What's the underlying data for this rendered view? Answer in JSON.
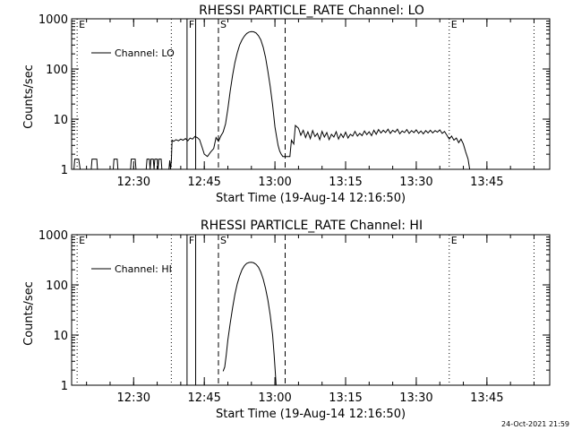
{
  "footer": {
    "timestamp": "24-Oct-2021 21:59"
  },
  "chart_data": [
    {
      "type": "line",
      "title": "RHESSI PARTICLE_RATE Channel: LO",
      "xlabel": "Start Time (19-Aug-14 12:16:50)",
      "ylabel": "Counts/sec",
      "yscale": "log",
      "ylim": [
        1,
        1000
      ],
      "xlim": [
        "12:16:50",
        "13:58:20"
      ],
      "ytick_labels": [
        "1000",
        "100",
        "10",
        "1"
      ],
      "xtick_labels": [
        "12:30",
        "12:45",
        "13:00",
        "13:15",
        "13:30",
        "13:45"
      ],
      "grid": false,
      "legend": {
        "position": "top-left",
        "label": "Channel: LO"
      },
      "markers": [
        {
          "time": "12:18:00",
          "label": "E",
          "style": "dotted"
        },
        {
          "time": "12:38:00",
          "label": "",
          "style": "dotted"
        },
        {
          "time": "12:41:20",
          "label": "F",
          "style": "solid"
        },
        {
          "time": "12:43:10",
          "label": "",
          "style": "solid"
        },
        {
          "time": "12:48:00",
          "label": "S",
          "style": "dashed"
        },
        {
          "time": "13:02:10",
          "label": "",
          "style": "dashed"
        },
        {
          "time": "13:37:00",
          "label": "E",
          "style": "dotted"
        },
        {
          "time": "13:55:00",
          "label": "",
          "style": "dotted"
        }
      ],
      "series": [
        {
          "name": "Channel: LO",
          "points": [
            [
              "12:16:50",
              1
            ],
            [
              "12:17:20",
              1
            ],
            [
              "12:17:30",
              1.6
            ],
            [
              "12:18:20",
              1.6
            ],
            [
              "12:18:40",
              1
            ],
            [
              "12:21:00",
              1
            ],
            [
              "12:21:10",
              1.6
            ],
            [
              "12:22:10",
              1.6
            ],
            [
              "12:22:20",
              1
            ],
            [
              "12:25:40",
              1
            ],
            [
              "12:25:50",
              1.6
            ],
            [
              "12:26:30",
              1.6
            ],
            [
              "12:26:40",
              1
            ],
            [
              "12:29:20",
              1
            ],
            [
              "12:29:30",
              1.6
            ],
            [
              "12:30:20",
              1.6
            ],
            [
              "12:30:30",
              1
            ],
            [
              "12:32:40",
              1
            ],
            [
              "12:32:50",
              1.6
            ],
            [
              "12:33:20",
              1.6
            ],
            [
              "12:33:30",
              1
            ],
            [
              "12:33:40",
              1.6
            ],
            [
              "12:34:10",
              1.6
            ],
            [
              "12:34:20",
              1
            ],
            [
              "12:34:30",
              1.6
            ],
            [
              "12:35:00",
              1.6
            ],
            [
              "12:35:10",
              1
            ],
            [
              "12:35:20",
              1.6
            ],
            [
              "12:35:50",
              1.6
            ],
            [
              "12:36:00",
              1
            ],
            [
              "12:37:30",
              1
            ],
            [
              "12:37:40",
              1.5
            ],
            [
              "12:37:50",
              1
            ],
            [
              "12:38:00",
              1.5
            ],
            [
              "12:38:10",
              3.8
            ],
            [
              "12:38:30",
              3.6
            ],
            [
              "12:39:00",
              3.9
            ],
            [
              "12:39:30",
              3.7
            ],
            [
              "12:40:00",
              4.0
            ],
            [
              "12:40:30",
              3.8
            ],
            [
              "12:41:00",
              4.1
            ],
            [
              "12:41:30",
              3.7
            ],
            [
              "12:42:00",
              4.2
            ],
            [
              "12:42:30",
              4.0
            ],
            [
              "12:43:00",
              4.5
            ],
            [
              "12:43:30",
              4.3
            ],
            [
              "12:44:00",
              3.9
            ],
            [
              "12:44:30",
              2.8
            ],
            [
              "12:45:00",
              2.0
            ],
            [
              "12:45:40",
              1.8
            ],
            [
              "12:46:20",
              2.2
            ],
            [
              "12:47:00",
              2.6
            ],
            [
              "12:47:30",
              4.3
            ],
            [
              "12:48:00",
              3.6
            ],
            [
              "12:48:30",
              4.6
            ],
            [
              "12:49:00",
              5.5
            ],
            [
              "12:49:30",
              8
            ],
            [
              "12:50:00",
              16
            ],
            [
              "12:50:30",
              36
            ],
            [
              "12:51:00",
              75
            ],
            [
              "12:51:30",
              135
            ],
            [
              "12:52:00",
              210
            ],
            [
              "12:52:30",
              300
            ],
            [
              "12:53:00",
              380
            ],
            [
              "12:53:30",
              450
            ],
            [
              "12:54:00",
              510
            ],
            [
              "12:54:30",
              545
            ],
            [
              "12:55:00",
              555
            ],
            [
              "12:55:30",
              550
            ],
            [
              "12:56:00",
              520
            ],
            [
              "12:56:30",
              460
            ],
            [
              "12:57:00",
              380
            ],
            [
              "12:57:30",
              270
            ],
            [
              "12:58:00",
              170
            ],
            [
              "12:58:30",
              90
            ],
            [
              "12:59:00",
              45
            ],
            [
              "12:59:30",
              19
            ],
            [
              "13:00:00",
              7
            ],
            [
              "13:00:20",
              4.5
            ],
            [
              "13:00:40",
              3
            ],
            [
              "13:01:00",
              2.3
            ],
            [
              "13:01:20",
              2.0
            ],
            [
              "13:01:40",
              1.8
            ],
            [
              "13:02:00",
              1.8
            ],
            [
              "13:02:20",
              1.8
            ],
            [
              "13:02:40",
              1.8
            ],
            [
              "13:03:00",
              1.8
            ],
            [
              "13:03:10",
              1.8
            ],
            [
              "13:03:30",
              3.8
            ],
            [
              "13:04:00",
              3.2
            ],
            [
              "13:04:20",
              7.5
            ],
            [
              "13:05:00",
              6.6
            ],
            [
              "13:05:30",
              4.8
            ],
            [
              "13:06:00",
              6.0
            ],
            [
              "13:06:30",
              4.3
            ],
            [
              "13:07:00",
              5.6
            ],
            [
              "13:07:30",
              4.1
            ],
            [
              "13:08:00",
              5.9
            ],
            [
              "13:08:30",
              4.5
            ],
            [
              "13:09:00",
              5.2
            ],
            [
              "13:09:30",
              3.9
            ],
            [
              "13:10:00",
              5.7
            ],
            [
              "13:10:30",
              4.4
            ],
            [
              "13:11:00",
              5.4
            ],
            [
              "13:11:30",
              3.9
            ],
            [
              "13:12:00",
              5.0
            ],
            [
              "13:12:30",
              4.4
            ],
            [
              "13:13:00",
              5.6
            ],
            [
              "13:13:30",
              4.0
            ],
            [
              "13:14:00",
              5.1
            ],
            [
              "13:14:30",
              4.3
            ],
            [
              "13:15:00",
              5.5
            ],
            [
              "13:15:30",
              4.2
            ],
            [
              "13:16:00",
              5.0
            ],
            [
              "13:16:30",
              4.6
            ],
            [
              "13:17:00",
              5.7
            ],
            [
              "13:17:30",
              4.6
            ],
            [
              "13:18:00",
              5.2
            ],
            [
              "13:18:30",
              4.7
            ],
            [
              "13:19:00",
              5.8
            ],
            [
              "13:19:30",
              4.9
            ],
            [
              "13:20:00",
              5.6
            ],
            [
              "13:20:30",
              4.7
            ],
            [
              "13:21:00",
              6.0
            ],
            [
              "13:21:30",
              5.0
            ],
            [
              "13:22:00",
              6.2
            ],
            [
              "13:22:30",
              5.3
            ],
            [
              "13:23:00",
              6.0
            ],
            [
              "13:23:30",
              5.4
            ],
            [
              "13:24:00",
              6.3
            ],
            [
              "13:24:30",
              5.2
            ],
            [
              "13:25:00",
              6.0
            ],
            [
              "13:25:30",
              5.5
            ],
            [
              "13:26:00",
              6.3
            ],
            [
              "13:26:30",
              5.1
            ],
            [
              "13:27:00",
              5.8
            ],
            [
              "13:27:30",
              5.4
            ],
            [
              "13:28:00",
              6.2
            ],
            [
              "13:28:30",
              5.2
            ],
            [
              "13:29:00",
              5.9
            ],
            [
              "13:29:30",
              5.4
            ],
            [
              "13:30:00",
              6.1
            ],
            [
              "13:30:30",
              5.2
            ],
            [
              "13:31:00",
              5.8
            ],
            [
              "13:31:30",
              5.1
            ],
            [
              "13:32:00",
              5.9
            ],
            [
              "13:32:30",
              5.3
            ],
            [
              "13:33:00",
              6.0
            ],
            [
              "13:33:30",
              5.3
            ],
            [
              "13:34:00",
              5.9
            ],
            [
              "13:34:30",
              5.5
            ],
            [
              "13:35:00",
              6.1
            ],
            [
              "13:35:30",
              5.2
            ],
            [
              "13:36:00",
              5.7
            ],
            [
              "13:36:30",
              4.8
            ],
            [
              "13:37:00",
              4.0
            ],
            [
              "13:37:30",
              4.6
            ],
            [
              "13:38:00",
              3.8
            ],
            [
              "13:38:30",
              4.2
            ],
            [
              "13:39:00",
              3.4
            ],
            [
              "13:39:30",
              4.0
            ],
            [
              "13:40:00",
              3.2
            ],
            [
              "13:40:30",
              2.2
            ],
            [
              "13:41:00",
              1.6
            ],
            [
              "13:41:20",
              1
            ],
            [
              "13:58:20",
              1
            ]
          ]
        }
      ]
    },
    {
      "type": "line",
      "title": "RHESSI PARTICLE_RATE Channel: HI",
      "xlabel": "Start Time (19-Aug-14 12:16:50)",
      "ylabel": "Counts/sec",
      "yscale": "log",
      "ylim": [
        1,
        1000
      ],
      "xlim": [
        "12:16:50",
        "13:58:20"
      ],
      "ytick_labels": [
        "1000",
        "100",
        "10",
        "1"
      ],
      "xtick_labels": [
        "12:30",
        "12:45",
        "13:00",
        "13:15",
        "13:30",
        "13:45"
      ],
      "grid": false,
      "legend": {
        "position": "top-left",
        "label": "Channel: HI"
      },
      "markers": [
        {
          "time": "12:18:00",
          "label": "E",
          "style": "dotted"
        },
        {
          "time": "12:38:00",
          "label": "",
          "style": "dotted"
        },
        {
          "time": "12:41:20",
          "label": "F",
          "style": "solid"
        },
        {
          "time": "12:43:10",
          "label": "",
          "style": "solid"
        },
        {
          "time": "12:48:00",
          "label": "S",
          "style": "dashed"
        },
        {
          "time": "13:02:10",
          "label": "",
          "style": "dashed"
        },
        {
          "time": "13:37:00",
          "label": "E",
          "style": "dotted"
        },
        {
          "time": "13:55:00",
          "label": "",
          "style": "dotted"
        }
      ],
      "series": [
        {
          "name": "Channel: HI",
          "points": [
            [
              "12:49:00",
              1.9
            ],
            [
              "12:49:20",
              2.3
            ],
            [
              "12:49:40",
              4
            ],
            [
              "12:50:00",
              8
            ],
            [
              "12:50:30",
              17
            ],
            [
              "12:51:00",
              35
            ],
            [
              "12:51:30",
              65
            ],
            [
              "12:52:00",
              105
            ],
            [
              "12:52:30",
              150
            ],
            [
              "12:53:00",
              200
            ],
            [
              "12:53:30",
              240
            ],
            [
              "12:54:00",
              268
            ],
            [
              "12:54:30",
              280
            ],
            [
              "12:55:00",
              282
            ],
            [
              "12:55:30",
              275
            ],
            [
              "12:56:00",
              255
            ],
            [
              "12:56:30",
              225
            ],
            [
              "12:57:00",
              180
            ],
            [
              "12:57:30",
              130
            ],
            [
              "12:58:00",
              85
            ],
            [
              "12:58:30",
              50
            ],
            [
              "12:59:00",
              25
            ],
            [
              "12:59:30",
              10
            ],
            [
              "12:59:50",
              4
            ],
            [
              "13:00:05",
              1.8
            ],
            [
              "13:00:15",
              1
            ]
          ]
        }
      ]
    }
  ]
}
